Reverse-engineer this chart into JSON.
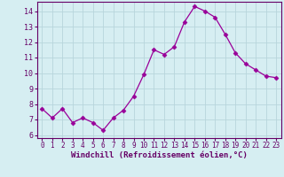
{
  "x": [
    0,
    1,
    2,
    3,
    4,
    5,
    6,
    7,
    8,
    9,
    10,
    11,
    12,
    13,
    14,
    15,
    16,
    17,
    18,
    19,
    20,
    21,
    22,
    23
  ],
  "y": [
    7.7,
    7.1,
    7.7,
    6.8,
    7.1,
    6.8,
    6.3,
    7.1,
    7.6,
    8.5,
    9.9,
    11.5,
    11.2,
    11.7,
    13.3,
    14.3,
    14.0,
    13.6,
    12.5,
    11.3,
    10.6,
    10.2,
    9.8,
    9.7
  ],
  "xlabel": "Windchill (Refroidissement éolien,°C)",
  "ylim": [
    5.8,
    14.6
  ],
  "xlim": [
    -0.5,
    23.5
  ],
  "yticks": [
    6,
    7,
    8,
    9,
    10,
    11,
    12,
    13,
    14
  ],
  "xticks": [
    0,
    1,
    2,
    3,
    4,
    5,
    6,
    7,
    8,
    9,
    10,
    11,
    12,
    13,
    14,
    15,
    16,
    17,
    18,
    19,
    20,
    21,
    22,
    23
  ],
  "line_color": "#990099",
  "marker": "D",
  "marker_size": 2.5,
  "bg_color": "#d6eef2",
  "grid_color": "#b8d5dc",
  "label_color": "#660066",
  "tick_color": "#660066",
  "spine_color": "#660066",
  "xlabel_fontsize": 6.5,
  "tick_fontsize_x": 5.5,
  "tick_fontsize_y": 6.0
}
